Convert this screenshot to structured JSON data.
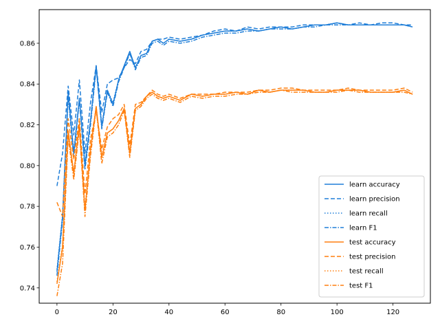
{
  "chart_data": {
    "type": "line",
    "title": "",
    "xlabel": "",
    "ylabel": "",
    "xlim": [
      -6.35,
      133.35
    ],
    "ylim": [
      0.7325,
      0.8765
    ],
    "grid": false,
    "legend_placement": "lower-right",
    "x_ticks": [
      0,
      20,
      40,
      60,
      80,
      100,
      120
    ],
    "y_ticks": [
      0.74,
      0.76,
      0.78,
      0.8,
      0.82,
      0.84,
      0.86
    ],
    "x_tick_labels": [
      "0",
      "20",
      "40",
      "60",
      "80",
      "100",
      "120"
    ],
    "y_tick_labels": [
      "0.74",
      "0.76",
      "0.78",
      "0.80",
      "0.82",
      "0.84",
      "0.86"
    ],
    "x": [
      0,
      2,
      4,
      6,
      8,
      10,
      12,
      14,
      16,
      18,
      20,
      22,
      24,
      26,
      28,
      30,
      32,
      34,
      36,
      38,
      40,
      44,
      48,
      52,
      56,
      60,
      64,
      68,
      72,
      76,
      80,
      84,
      88,
      92,
      96,
      100,
      104,
      108,
      112,
      116,
      120,
      124,
      127
    ],
    "series": [
      {
        "name": "learn accuracy",
        "color": "#1f7ed8",
        "dash": "solid",
        "values": [
          0.748,
          0.775,
          0.836,
          0.806,
          0.833,
          0.8,
          0.822,
          0.849,
          0.819,
          0.837,
          0.83,
          0.842,
          0.849,
          0.856,
          0.848,
          0.854,
          0.855,
          0.861,
          0.862,
          0.86,
          0.862,
          0.861,
          0.862,
          0.864,
          0.865,
          0.866,
          0.866,
          0.867,
          0.866,
          0.867,
          0.868,
          0.867,
          0.868,
          0.869,
          0.869,
          0.87,
          0.869,
          0.869,
          0.869,
          0.869,
          0.869,
          0.869,
          0.868
        ]
      },
      {
        "name": "learn precision",
        "color": "#1f7ed8",
        "dash": "6,3",
        "values": [
          0.79,
          0.806,
          0.839,
          0.815,
          0.842,
          0.806,
          0.831,
          0.849,
          0.826,
          0.84,
          0.842,
          0.843,
          0.848,
          0.852,
          0.85,
          0.856,
          0.857,
          0.861,
          0.862,
          0.862,
          0.863,
          0.862,
          0.863,
          0.864,
          0.866,
          0.867,
          0.866,
          0.868,
          0.867,
          0.868,
          0.868,
          0.868,
          0.869,
          0.869,
          0.869,
          0.87,
          0.869,
          0.87,
          0.869,
          0.87,
          0.87,
          0.869,
          0.869
        ]
      },
      {
        "name": "learn recall",
        "color": "#1f7ed8",
        "dash": "1.5,2.5",
        "values": [
          0.749,
          0.776,
          0.835,
          0.807,
          0.833,
          0.801,
          0.823,
          0.848,
          0.82,
          0.837,
          0.831,
          0.842,
          0.849,
          0.855,
          0.848,
          0.854,
          0.855,
          0.861,
          0.862,
          0.86,
          0.862,
          0.861,
          0.862,
          0.864,
          0.865,
          0.866,
          0.866,
          0.867,
          0.866,
          0.867,
          0.868,
          0.867,
          0.868,
          0.869,
          0.869,
          0.87,
          0.869,
          0.869,
          0.869,
          0.869,
          0.869,
          0.869,
          0.868
        ]
      },
      {
        "name": "learn F1",
        "color": "#1f7ed8",
        "dash": "6,2,1.5,2",
        "values": [
          0.746,
          0.773,
          0.834,
          0.804,
          0.832,
          0.798,
          0.82,
          0.848,
          0.818,
          0.836,
          0.829,
          0.841,
          0.848,
          0.855,
          0.847,
          0.853,
          0.854,
          0.86,
          0.861,
          0.859,
          0.861,
          0.86,
          0.861,
          0.863,
          0.864,
          0.865,
          0.865,
          0.866,
          0.866,
          0.867,
          0.867,
          0.867,
          0.868,
          0.868,
          0.869,
          0.869,
          0.869,
          0.869,
          0.869,
          0.869,
          0.869,
          0.869,
          0.868
        ]
      },
      {
        "name": "test accuracy",
        "color": "#ff7f0e",
        "dash": "solid",
        "values": [
          0.742,
          0.76,
          0.817,
          0.796,
          0.82,
          0.778,
          0.808,
          0.829,
          0.804,
          0.816,
          0.818,
          0.822,
          0.828,
          0.806,
          0.828,
          0.83,
          0.834,
          0.836,
          0.834,
          0.833,
          0.834,
          0.832,
          0.835,
          0.834,
          0.835,
          0.835,
          0.836,
          0.835,
          0.837,
          0.836,
          0.837,
          0.837,
          0.837,
          0.836,
          0.836,
          0.837,
          0.837,
          0.837,
          0.836,
          0.836,
          0.836,
          0.837,
          0.835
        ]
      },
      {
        "name": "test precision",
        "color": "#ff7f0e",
        "dash": "6,3",
        "values": [
          0.782,
          0.775,
          0.823,
          0.803,
          0.823,
          0.786,
          0.813,
          0.827,
          0.808,
          0.819,
          0.823,
          0.825,
          0.83,
          0.81,
          0.83,
          0.831,
          0.834,
          0.837,
          0.835,
          0.834,
          0.835,
          0.833,
          0.835,
          0.835,
          0.835,
          0.836,
          0.836,
          0.836,
          0.837,
          0.837,
          0.838,
          0.838,
          0.837,
          0.837,
          0.837,
          0.837,
          0.838,
          0.837,
          0.837,
          0.837,
          0.837,
          0.838,
          0.836
        ]
      },
      {
        "name": "test recall",
        "color": "#ff7f0e",
        "dash": "1.5,2.5",
        "values": [
          0.743,
          0.761,
          0.817,
          0.797,
          0.82,
          0.779,
          0.808,
          0.829,
          0.805,
          0.816,
          0.818,
          0.822,
          0.828,
          0.807,
          0.828,
          0.83,
          0.834,
          0.836,
          0.834,
          0.833,
          0.834,
          0.832,
          0.835,
          0.834,
          0.835,
          0.835,
          0.836,
          0.835,
          0.837,
          0.836,
          0.837,
          0.837,
          0.837,
          0.836,
          0.836,
          0.837,
          0.837,
          0.837,
          0.836,
          0.836,
          0.836,
          0.837,
          0.835
        ]
      },
      {
        "name": "test F1",
        "color": "#ff7f0e",
        "dash": "6,2,1.5,2",
        "values": [
          0.736,
          0.752,
          0.814,
          0.793,
          0.818,
          0.775,
          0.805,
          0.828,
          0.801,
          0.814,
          0.816,
          0.82,
          0.827,
          0.804,
          0.827,
          0.829,
          0.833,
          0.835,
          0.833,
          0.832,
          0.833,
          0.831,
          0.834,
          0.833,
          0.834,
          0.834,
          0.835,
          0.835,
          0.836,
          0.836,
          0.837,
          0.836,
          0.836,
          0.836,
          0.836,
          0.836,
          0.837,
          0.836,
          0.836,
          0.836,
          0.836,
          0.836,
          0.835
        ]
      }
    ]
  }
}
